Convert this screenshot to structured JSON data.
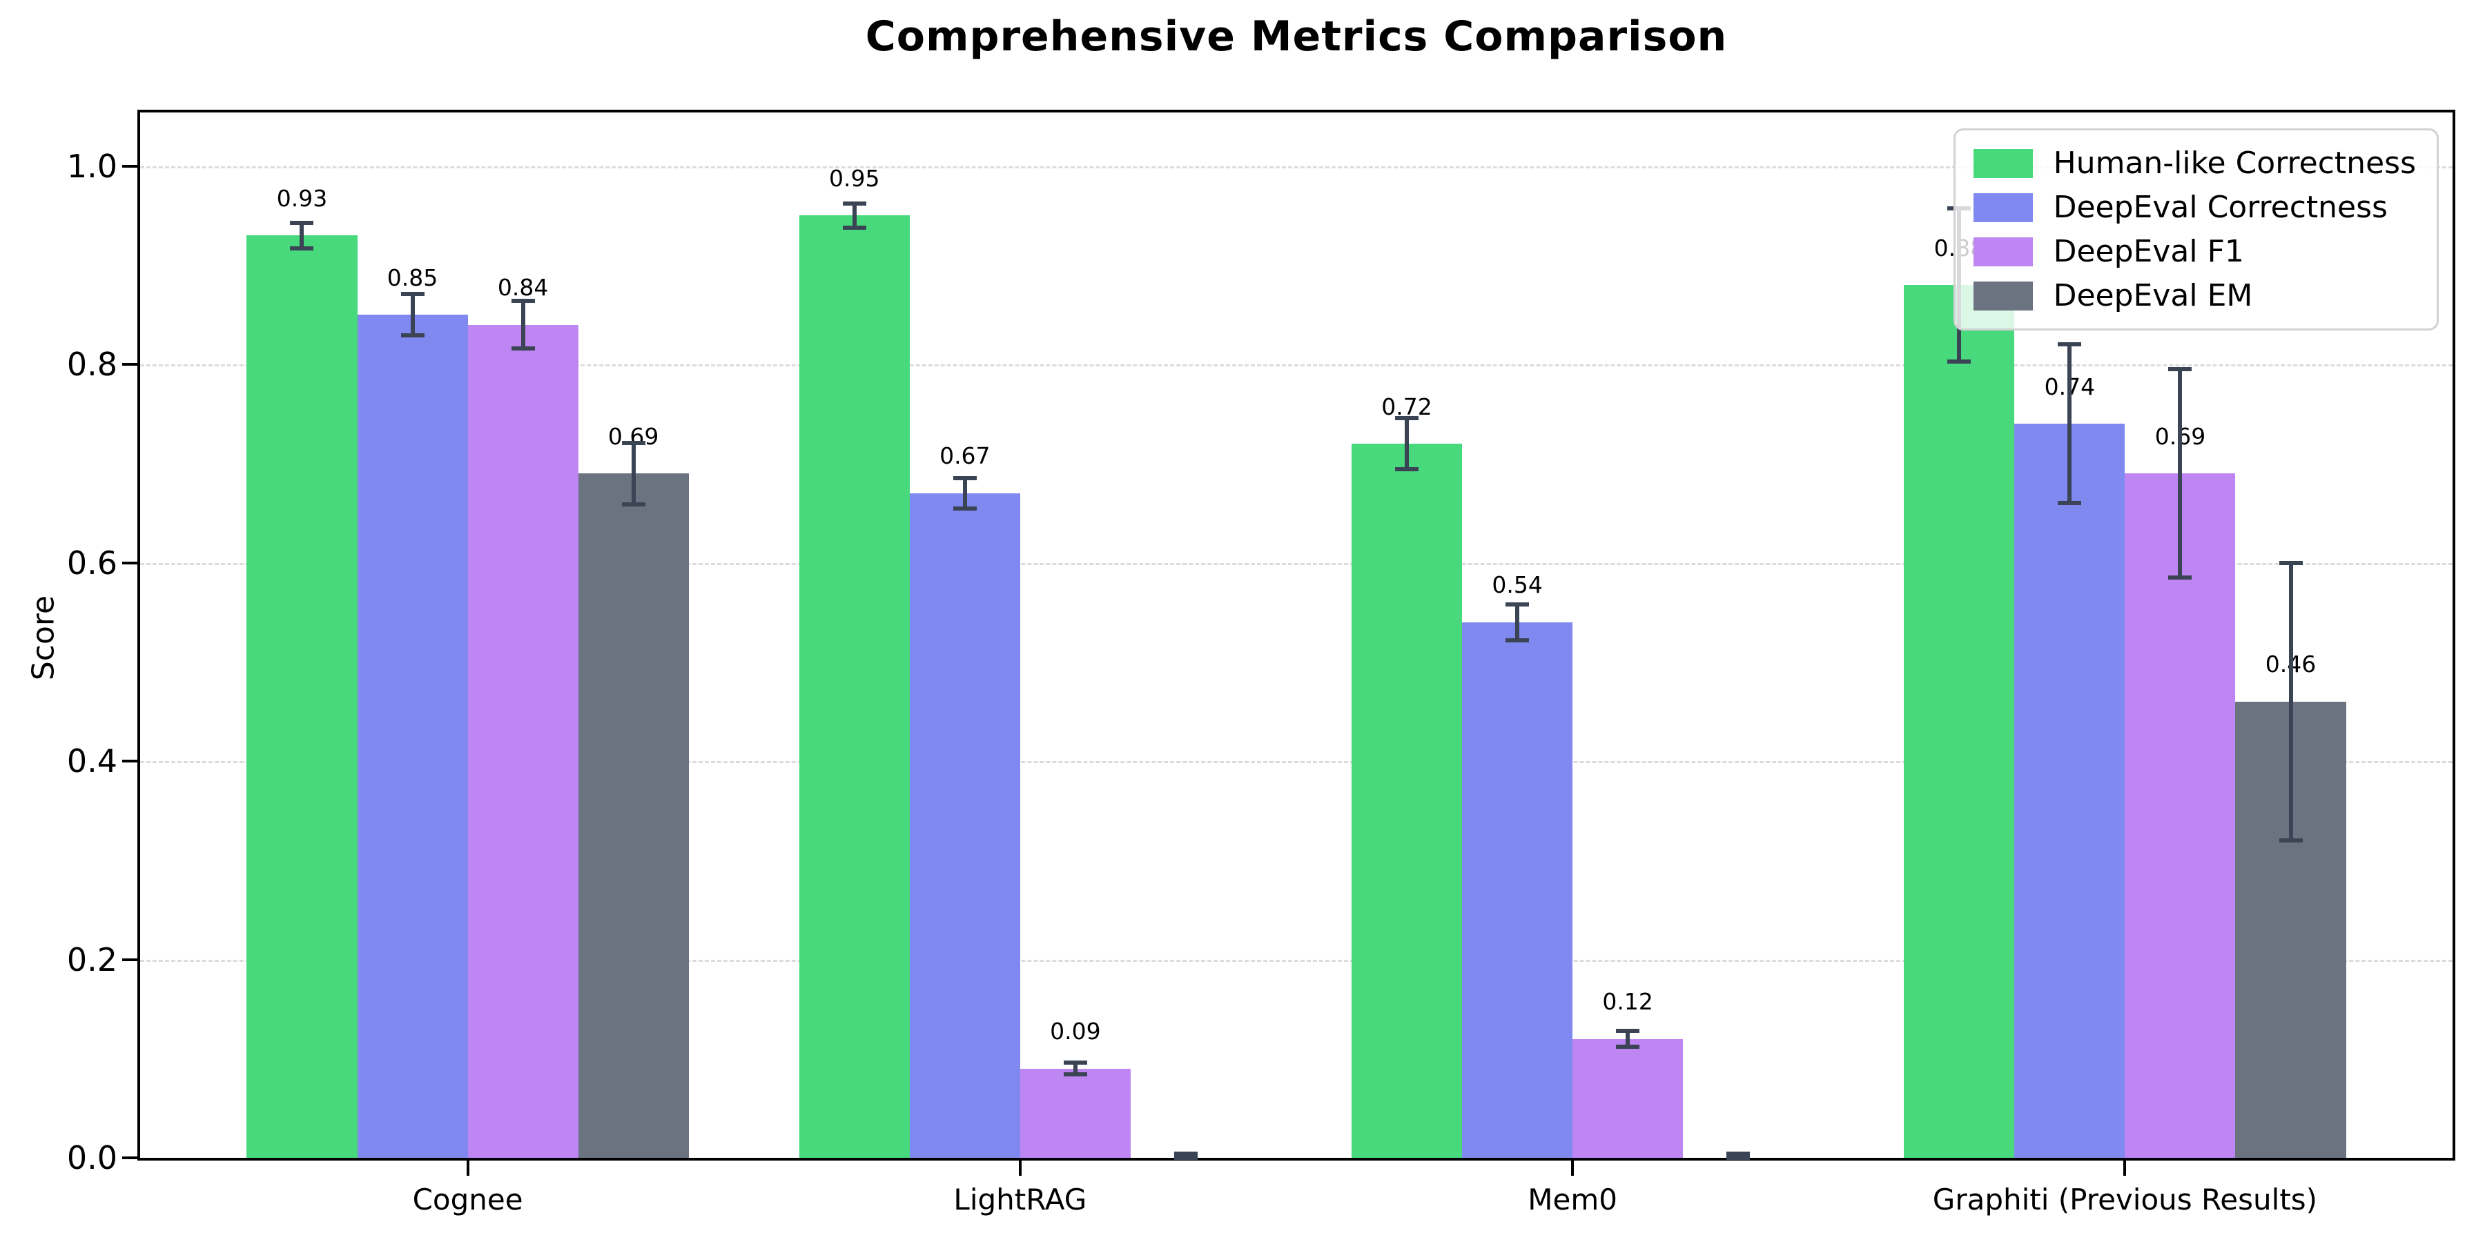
{
  "chart_data": {
    "type": "bar",
    "title": "Comprehensive Metrics Comparison",
    "xlabel": "",
    "ylabel": "Score",
    "categories": [
      "Cognee",
      "LightRAG",
      "Mem0",
      "Graphiti (Previous Results)"
    ],
    "series": [
      {
        "name": "Human-like Correctness",
        "color": "#48d97d",
        "values": [
          0.93,
          0.95,
          0.72,
          0.88
        ],
        "errors": [
          0.013,
          0.012,
          0.026,
          0.077
        ],
        "labels": [
          "0.93",
          "0.95",
          "0.72",
          "0.88"
        ]
      },
      {
        "name": "DeepEval Correctness",
        "color": "#8089f0",
        "values": [
          0.85,
          0.67,
          0.54,
          0.74
        ],
        "errors": [
          0.021,
          0.015,
          0.018,
          0.08
        ],
        "labels": [
          "0.85",
          "0.67",
          "0.54",
          "0.74"
        ]
      },
      {
        "name": "DeepEval F1",
        "color": "#bd86f3",
        "values": [
          0.84,
          0.09,
          0.12,
          0.69
        ],
        "errors": [
          0.024,
          0.006,
          0.008,
          0.105
        ],
        "labels": [
          "0.84",
          "0.09",
          "0.12",
          "0.69"
        ]
      },
      {
        "name": "DeepEval EM",
        "color": "#6b7280",
        "values": [
          0.69,
          0.0,
          0.0,
          0.46
        ],
        "errors": [
          0.031,
          0.004,
          0.004,
          0.14
        ],
        "labels": [
          "0.69",
          null,
          null,
          "0.46"
        ]
      }
    ],
    "yticks": [
      0.0,
      0.2,
      0.4,
      0.6,
      0.8,
      1.0
    ],
    "ytick_labels": [
      "0.0",
      "0.2",
      "0.4",
      "0.6",
      "0.8",
      "1.0"
    ],
    "ylim": [
      0,
      1.054
    ],
    "xlim": [
      -0.593,
      3.593
    ],
    "bar_width": 0.2,
    "label_offset": 0.024,
    "grid": {
      "axis": "y",
      "style": "dashed",
      "color": "#dcdcdc"
    },
    "legend": {
      "position": "upper right"
    },
    "colors": {
      "error_bar": "#3a4454",
      "axis": "#000000",
      "background": "#ffffff"
    }
  }
}
